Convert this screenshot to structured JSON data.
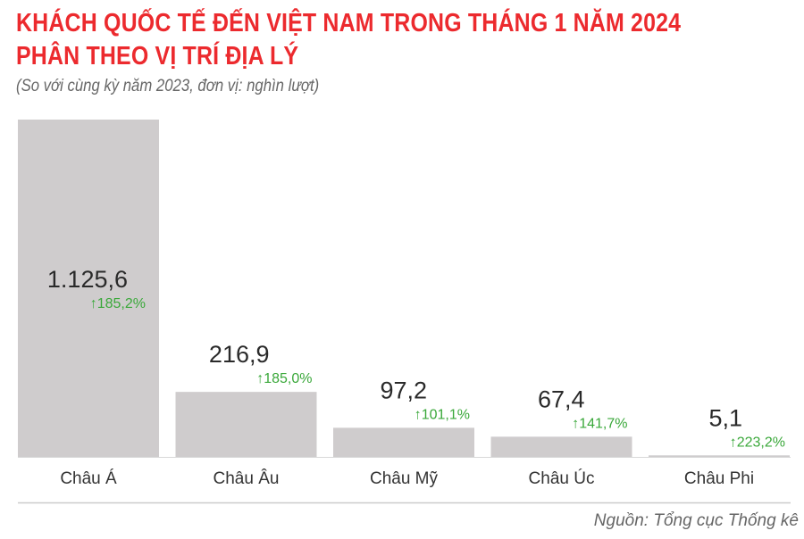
{
  "chart_data": {
    "type": "bar",
    "title": "KHÁCH QUỐC TẾ ĐẾN VIỆT NAM TRONG THÁNG 1 NĂM 2024",
    "title_line2": "PHÂN THEO VỊ TRÍ ĐỊA LÝ",
    "subtitle": "(So với cùng kỳ năm 2023, đơn vị: nghìn lượt)",
    "categories": [
      "Châu Á",
      "Châu Âu",
      "Châu Mỹ",
      "Châu Úc",
      "Châu Phi"
    ],
    "values": [
      1125.6,
      216.9,
      97.2,
      67.4,
      5.1
    ],
    "value_labels": [
      "1.125,6",
      "216,9",
      "97,2",
      "67,4",
      "5,1"
    ],
    "change_labels": [
      "185,2%",
      "185,0%",
      "101,1%",
      "141,7%",
      "223,2%"
    ],
    "change_direction": "up",
    "source": "Nguồn: Tổng cục Thống kê",
    "grid": false,
    "colors": {
      "bar": "#cfcccd",
      "title": "#ec2a2e",
      "change": "#3aa83a"
    }
  }
}
